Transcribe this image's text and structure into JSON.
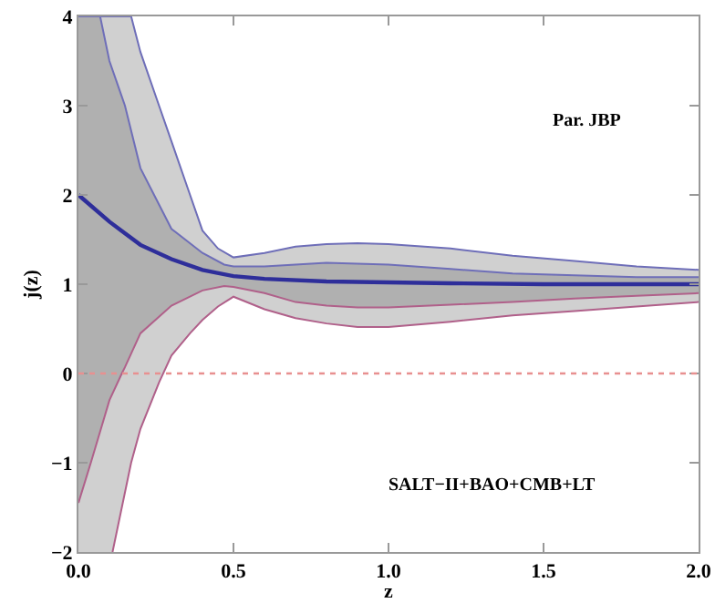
{
  "chart_data": {
    "type": "line",
    "xlabel": "z",
    "ylabel": "j(z)",
    "annotations": [
      "Par. JBP",
      "SALT−II+BAO+CMB+LT"
    ],
    "xlim": [
      0,
      2
    ],
    "ylim": [
      -2,
      4
    ],
    "xticks": [
      {
        "value": 0,
        "label": "0.0"
      },
      {
        "value": 0.5,
        "label": "0.5"
      },
      {
        "value": 1,
        "label": "1.0"
      },
      {
        "value": 1.5,
        "label": "1.5"
      },
      {
        "value": 2,
        "label": "2.0"
      }
    ],
    "yticks": [
      {
        "value": -2,
        "label": "−2"
      },
      {
        "value": -1,
        "label": "−1"
      },
      0,
      1,
      2,
      3,
      4
    ],
    "grid": false,
    "ref_lines": [
      {
        "axis": "y",
        "value": 0,
        "color": "#e89090",
        "line_style": "dotted"
      }
    ],
    "series": [
      {
        "color": "#6e6eb8",
        "x": [
          0,
          0.11,
          0.17,
          0.2,
          0.26,
          0.3,
          0.36,
          0.4,
          0.45,
          0.5,
          0.6,
          0.7,
          0.8,
          0.9,
          1.0,
          1.2,
          1.4,
          1.6,
          1.8,
          2.0
        ],
        "values": [
          4,
          4,
          4,
          3.6,
          3,
          2.6,
          2,
          1.6,
          1.4,
          1.3,
          1.35,
          1.42,
          1.45,
          1.46,
          1.45,
          1.4,
          1.32,
          1.26,
          1.2,
          1.16
        ],
        "lower": [
          -2,
          -2,
          -1,
          -0.62,
          -0.1,
          0.2,
          0.45,
          0.6,
          0.75,
          0.86,
          0.72,
          0.62,
          0.56,
          0.52,
          0.52,
          0.58,
          0.65,
          0.7,
          0.75,
          0.8
        ],
        "upper": [
          4,
          4,
          4,
          3.6,
          3,
          2.6,
          2,
          1.6,
          1.4,
          1.3,
          1.35,
          1.42,
          1.45,
          1.46,
          1.45,
          1.4,
          1.32,
          1.26,
          1.2,
          1.16
        ]
      },
      {
        "color": "#6e6eb8",
        "x": [
          0,
          0.04,
          0.07,
          0.1,
          0.14,
          0.15,
          0.2,
          0.3,
          0.4,
          0.47,
          0.5,
          0.6,
          0.7,
          0.8,
          0.9,
          1.0,
          1.2,
          1.4,
          1.6,
          1.8,
          2.0
        ],
        "values": [
          4,
          4,
          4,
          3.5,
          3.1,
          3,
          2.3,
          1.62,
          1.35,
          1.22,
          1.2,
          1.2,
          1.22,
          1.24,
          1.23,
          1.22,
          1.17,
          1.12,
          1.1,
          1.08,
          1.08
        ],
        "lower": [
          -1.45,
          -1,
          -0.65,
          -0.3,
          0,
          0.07,
          0.45,
          0.76,
          0.93,
          0.98,
          0.97,
          0.9,
          0.8,
          0.76,
          0.74,
          0.74,
          0.77,
          0.8,
          0.84,
          0.87,
          0.9
        ],
        "upper": [
          4,
          4,
          4,
          3.5,
          3.1,
          3,
          2.3,
          1.62,
          1.35,
          1.22,
          1.2,
          1.2,
          1.22,
          1.24,
          1.23,
          1.22,
          1.17,
          1.12,
          1.1,
          1.08,
          1.08
        ]
      },
      {
        "color": "#2e2e9a",
        "x": [
          0,
          0.1,
          0.2,
          0.3,
          0.4,
          0.5,
          0.6,
          0.8,
          1.0,
          1.2,
          1.5,
          2.0
        ],
        "values": [
          2,
          1.7,
          1.44,
          1.28,
          1.16,
          1.09,
          1.06,
          1.03,
          1.02,
          1.01,
          1.0,
          1.0
        ]
      },
      {
        "color": "#b0608a",
        "x": [
          0,
          0.04,
          0.07,
          0.1,
          0.14,
          0.15,
          0.2,
          0.3,
          0.4,
          0.47,
          0.5,
          0.6,
          0.7,
          0.8,
          0.9,
          1.0,
          1.2,
          1.4,
          1.6,
          1.8,
          2.0
        ],
        "values": [
          -1.45,
          -1,
          -0.65,
          -0.3,
          0,
          0.07,
          0.45,
          0.76,
          0.93,
          0.98,
          0.97,
          0.9,
          0.8,
          0.76,
          0.74,
          0.74,
          0.77,
          0.8,
          0.84,
          0.87,
          0.9
        ]
      },
      {
        "color": "#b0608a",
        "x": [
          0.11,
          0.17,
          0.2,
          0.26,
          0.3,
          0.36,
          0.4,
          0.45,
          0.5,
          0.6,
          0.7,
          0.8,
          0.9,
          1.0,
          1.2,
          1.4,
          1.6,
          1.8,
          2.0
        ],
        "values": [
          -2,
          -1,
          -0.62,
          -0.1,
          0.2,
          0.45,
          0.6,
          0.75,
          0.86,
          0.72,
          0.62,
          0.56,
          0.52,
          0.52,
          0.58,
          0.65,
          0.7,
          0.75,
          0.8
        ]
      }
    ]
  }
}
